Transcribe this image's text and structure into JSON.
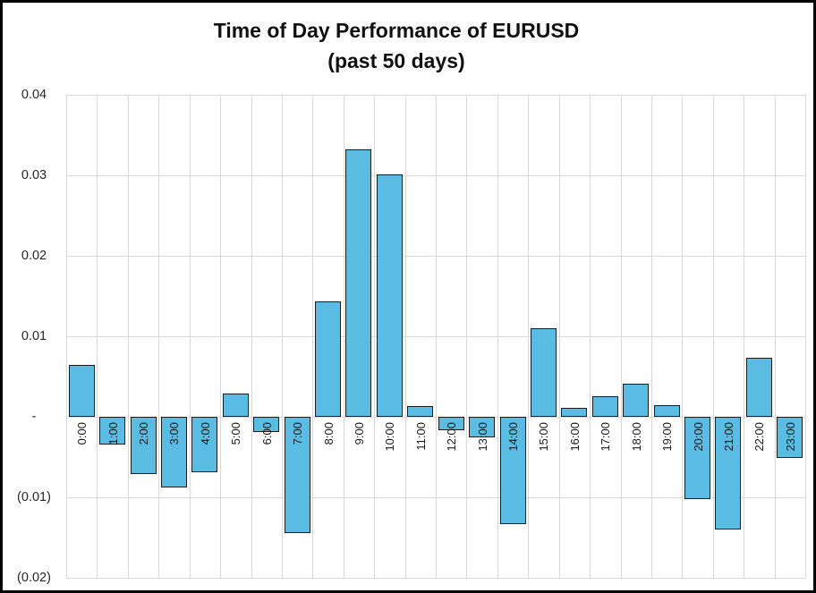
{
  "title": {
    "line1": "Time of Day Performance of EURUSD",
    "line2": "(past 50 days)"
  },
  "chart_data": {
    "type": "bar",
    "title": "Time of Day Performance of EURUSD (past 50 days)",
    "xlabel": "",
    "ylabel": "",
    "categories": [
      "0:00",
      "1:00",
      "2:00",
      "3:00",
      "4:00",
      "5:00",
      "6:00",
      "7:00",
      "8:00",
      "9:00",
      "10:00",
      "11:00",
      "12:00",
      "13:00",
      "14:00",
      "15:00",
      "16:00",
      "17:00",
      "18:00",
      "19:00",
      "20:00",
      "21:00",
      "22:00",
      "23:00"
    ],
    "values": [
      0.0065,
      -0.0034,
      -0.0071,
      -0.0088,
      -0.0069,
      0.0029,
      -0.0019,
      -0.0144,
      0.0143,
      0.0332,
      0.0301,
      0.0013,
      -0.0017,
      -0.0026,
      -0.0133,
      0.011,
      0.0011,
      0.0026,
      0.0041,
      0.0015,
      -0.0102,
      -0.014,
      0.0073,
      -0.0051
    ],
    "ylim": [
      -0.02,
      0.04
    ],
    "ytick_step": 0.01,
    "yticks": [
      0.04,
      0.03,
      0.02,
      0.01,
      0,
      -0.01,
      -0.02
    ],
    "ytick_labels": [
      "0.04",
      "0.03",
      "0.02",
      "0.01",
      "-",
      "(0.01)",
      "(0.02)"
    ],
    "grid": true,
    "legend": "none",
    "bar_color": "#5ABCE2",
    "bar_border_color": "#1c1c1c",
    "gridline_color": "#d9d9d9"
  }
}
